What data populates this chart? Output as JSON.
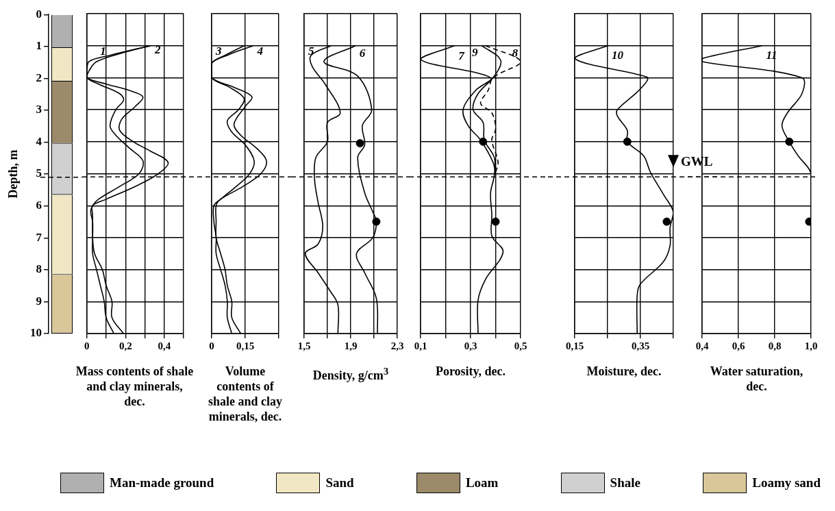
{
  "chart_data": [
    {
      "type": "bar",
      "stacked": true,
      "categories": [
        null
      ],
      "ylabel": "Depth, m",
      "ylim": [
        10,
        0
      ],
      "yticks": [
        0,
        1,
        2,
        3,
        4,
        5,
        6,
        7,
        8,
        9,
        10
      ],
      "tick_labels": "y",
      "legend": "bottom",
      "ref_lines": [
        {
          "axis": "y",
          "value": 5.1,
          "line_style": "dashed"
        }
      ],
      "series": [
        {
          "name": "Man-made ground",
          "color": "#b0b0b0",
          "values": [
            1.05
          ]
        },
        {
          "name": "Sand",
          "color": "#f1e7c4",
          "values": [
            1.05
          ]
        },
        {
          "name": "Loam",
          "color": "#9c8a6a",
          "values": [
            1.95
          ]
        },
        {
          "name": "Shale",
          "color": "#d0d0d0",
          "values": [
            1.6
          ]
        },
        {
          "color": "#f1e7c4",
          "values": [
            2.5
          ]
        },
        {
          "name": "Loamy sand",
          "color": "#d9c79a",
          "values": [
            1.85
          ]
        }
      ]
    },
    {
      "type": "line",
      "xlabel": "Mass contents of shale and clay minerals, dec.",
      "xlim": [
        0,
        0.5
      ],
      "xticks": [
        0,
        {
          "value": 0.1,
          "label": null
        },
        {
          "value": 0.2,
          "label": "0,2"
        },
        {
          "value": 0.3,
          "label": null
        },
        {
          "value": 0.4,
          "label": "0,4"
        },
        {
          "value": 0.5,
          "label": null
        }
      ],
      "ylim": [
        10,
        0
      ],
      "yticks": [
        0,
        1,
        2,
        3,
        4,
        5,
        6,
        7,
        8,
        9,
        10
      ],
      "tick_labels": "x",
      "grid": true,
      "marker": "none",
      "ref_lines": [
        {
          "axis": "y",
          "value": 5.1,
          "line_style": "dashed"
        }
      ],
      "series": [
        {
          "name": "1",
          "color": "#000000",
          "x": [
            0.33,
            0.12,
            0.01,
            0,
            0,
            0.06,
            0.17,
            0.19,
            0.15,
            0.12,
            0.15,
            0.22,
            0.29,
            0.27,
            0.17,
            0.06,
            0.03,
            0.02,
            0.03,
            0.03,
            0.03,
            0.05,
            0.07,
            0.09,
            0.1,
            0.14
          ],
          "values": [
            1,
            1.3,
            1.5,
            1.8,
            2,
            2.2,
            2.5,
            2.7,
            3,
            3.5,
            3.8,
            4.2,
            4.6,
            5,
            5.4,
            5.8,
            6,
            6.2,
            6.5,
            7,
            7.5,
            8,
            8.5,
            9,
            9.5,
            10
          ]
        },
        {
          "name": "2",
          "color": "#000000",
          "x": [
            0.33,
            0.2,
            0.05,
            0.01,
            0,
            0.1,
            0.22,
            0.29,
            0.25,
            0.18,
            0.17,
            0.24,
            0.33,
            0.42,
            0.37,
            0.25,
            0.1,
            0.03,
            0.03,
            0.03,
            0.04,
            0.08,
            0.1,
            0.13,
            0.13,
            0.19
          ],
          "values": [
            1,
            1.2,
            1.5,
            1.8,
            2,
            2.2,
            2.4,
            2.6,
            2.9,
            3.3,
            3.65,
            4,
            4.3,
            4.65,
            5,
            5.4,
            5.8,
            6,
            6.3,
            7,
            7.5,
            8,
            8.5,
            9,
            9.5,
            10
          ]
        }
      ]
    },
    {
      "type": "line",
      "xlabel": "Volume contents of shale and clay minerals, dec.",
      "xlim": [
        0,
        0.3
      ],
      "xticks": [
        0,
        {
          "value": 0.15,
          "label": "0,15"
        },
        {
          "value": 0.3,
          "label": null
        }
      ],
      "ylim": [
        10,
        0
      ],
      "yticks": [
        0,
        1,
        2,
        3,
        4,
        5,
        6,
        7,
        8,
        9,
        10
      ],
      "tick_labels": "x",
      "grid": true,
      "marker": "none",
      "ref_lines": [
        {
          "axis": "y",
          "value": 5.1,
          "line_style": "dashed"
        }
      ],
      "series": [
        {
          "name": "3",
          "color": "#000000",
          "x": [
            0.145,
            0.06,
            0,
            0,
            0.08,
            0.145,
            0.12,
            0.07,
            0.09,
            0.15,
            0.19,
            0.17,
            0.11,
            0.04,
            0.01,
            0.01,
            0.02,
            0.02,
            0.04,
            0.06,
            0.07,
            0.07,
            0.09
          ],
          "values": [
            1,
            1.3,
            1.55,
            2,
            2.3,
            2.65,
            3,
            3.35,
            3.7,
            4.1,
            4.6,
            5,
            5.4,
            5.8,
            6,
            6.5,
            7,
            7.5,
            8,
            8.5,
            9,
            9.5,
            10
          ]
        },
        {
          "name": "4",
          "color": "#000000",
          "x": [
            0.185,
            0.07,
            0,
            0,
            0.1,
            0.18,
            0.15,
            0.1,
            0.13,
            0.2,
            0.245,
            0.22,
            0.14,
            0.04,
            0.02,
            0.02,
            0.02,
            0.04,
            0.06,
            0.07,
            0.09,
            0.09,
            0.13
          ],
          "values": [
            1,
            1.3,
            1.55,
            2,
            2.3,
            2.6,
            2.9,
            3.45,
            3.8,
            4.2,
            4.6,
            5,
            5.4,
            5.8,
            6,
            6.5,
            7,
            7.5,
            8,
            8.5,
            9,
            9.5,
            10
          ]
        }
      ]
    },
    {
      "type": "line",
      "xlabel": "Density, g/cm$^{3}$",
      "xlim": [
        1.5,
        2.3
      ],
      "xticks": [
        {
          "value": 1.5,
          "label": "1,5"
        },
        {
          "value": 1.7,
          "label": null
        },
        {
          "value": 1.9,
          "label": "1,9"
        },
        {
          "value": 2.1,
          "label": null
        },
        {
          "value": 2.3,
          "label": "2,3"
        }
      ],
      "ylim": [
        10,
        0
      ],
      "yticks": [
        0,
        1,
        2,
        3,
        4,
        5,
        6,
        7,
        8,
        9,
        10
      ],
      "tick_labels": "x",
      "grid": true,
      "marker": "none",
      "ref_lines": [
        {
          "axis": "y",
          "value": 5.1,
          "line_style": "dashed"
        }
      ],
      "series": [
        {
          "name": "5",
          "color": "#000000",
          "x": [
            1.73,
            1.56,
            1.57,
            1.68,
            1.81,
            1.7,
            1.7,
            1.6,
            1.59,
            1.62,
            1.66,
            1.62,
            1.51,
            1.62,
            1.72,
            1.79,
            1.79
          ],
          "values": [
            1,
            1.3,
            1.65,
            2.2,
            3.1,
            3.4,
            4,
            4.5,
            5.2,
            5.9,
            6.65,
            7.2,
            7.5,
            8.1,
            8.65,
            9.1,
            10
          ]
        },
        {
          "name": "6",
          "color": "#000000",
          "x": [
            1.94,
            1.67,
            1.96,
            2.08,
            2,
            2.02,
            1.96,
            2.02,
            2.09,
            2.12,
            2.09,
            1.95,
            2.02,
            2.12,
            2.13
          ],
          "values": [
            1,
            1.5,
            1.95,
            3,
            3.5,
            4.1,
            4.5,
            5.6,
            6.2,
            6.5,
            7,
            7.5,
            8.1,
            8.9,
            10
          ]
        },
        {
          "type": "scatter",
          "marker": "circle",
          "color": "#000000",
          "x": [
            1.98,
            2.12
          ],
          "values": [
            4.05,
            6.5
          ]
        }
      ]
    },
    {
      "type": "line",
      "xlabel": "Porosity, dec.",
      "xlim": [
        0.1,
        0.5
      ],
      "xticks": [
        {
          "value": 0.1,
          "label": "0,1"
        },
        {
          "value": 0.2,
          "label": null
        },
        {
          "value": 0.3,
          "label": "0,3"
        },
        {
          "value": 0.4,
          "label": null
        },
        {
          "value": 0.5,
          "label": "0,5"
        }
      ],
      "ylim": [
        10,
        0
      ],
      "yticks": [
        0,
        1,
        2,
        3,
        4,
        5,
        6,
        7,
        8,
        9,
        10
      ],
      "tick_labels": "x",
      "grid": true,
      "marker": "none",
      "ref_lines": [
        {
          "axis": "y",
          "value": 5.1,
          "line_style": "dashed"
        }
      ],
      "series": [
        {
          "name": "7",
          "color": "#000000",
          "x": [
            0.235,
            0.1,
            0.38,
            0.32,
            0.27,
            0.29,
            0.34,
            0.39,
            0.4
          ],
          "values": [
            1,
            1.43,
            2,
            2.4,
            3,
            3.5,
            3.95,
            4.65,
            5.05
          ]
        },
        {
          "name": "8",
          "color": "#000000",
          "line_style": "dashed",
          "x": [
            0.36,
            0.5,
            0.39,
            0.37,
            0.34,
            0.385,
            0.4,
            0.385,
            0.41,
            0.395
          ],
          "values": [
            1,
            1.5,
            2,
            2.4,
            2.8,
            3.1,
            3.6,
            3.95,
            4.65,
            5.05
          ]
        },
        {
          "name": "9",
          "color": "#000000",
          "x": [
            0.345,
            0.42,
            0.395,
            0.33,
            0.31,
            0.35,
            0.355,
            0.395,
            0.395,
            0.38,
            0.385,
            0.385,
            0.43,
            0.36,
            0.33,
            0.33
          ],
          "values": [
            1,
            1.45,
            1.95,
            2.5,
            3,
            3.4,
            3.95,
            4.5,
            5.05,
            5.6,
            6.3,
            6.95,
            7.45,
            8.3,
            8.95,
            10
          ]
        },
        {
          "type": "scatter",
          "marker": "circle",
          "color": "#000000",
          "x": [
            0.35,
            0.4
          ],
          "values": [
            4,
            6.5
          ]
        }
      ]
    },
    {
      "type": "line",
      "xlabel": "Moisture, dec.",
      "xlim": [
        0.15,
        0.45
      ],
      "xticks": [
        {
          "value": 0.15,
          "label": "0,15"
        },
        {
          "value": 0.25,
          "label": null
        },
        {
          "value": 0.35,
          "label": "0,35"
        },
        {
          "value": 0.45,
          "label": null
        }
      ],
      "ylim": [
        10,
        0
      ],
      "yticks": [
        0,
        1,
        2,
        3,
        4,
        5,
        6,
        7,
        8,
        9,
        10
      ],
      "tick_labels": "x",
      "grid": true,
      "marker": "none",
      "ref_lines": [
        {
          "axis": "y",
          "value": 5.1,
          "line_style": "dashed",
          "label": "GWL"
        }
      ],
      "series": [
        {
          "name": "10",
          "color": "#000000",
          "x": [
            0.25,
            0.15,
            0.37,
            0.37,
            0.34,
            0.28,
            0.28,
            0.31,
            0.31,
            0.36,
            0.38,
            0.42,
            0.45,
            0.44,
            0.44,
            0.42,
            0.35,
            0.34,
            0.34
          ],
          "values": [
            1,
            1.4,
            1.98,
            2.1,
            2.45,
            3,
            3.2,
            3.65,
            4,
            4.45,
            4.95,
            5.65,
            6.2,
            6.7,
            7.25,
            7.75,
            8.45,
            8.8,
            10
          ]
        },
        {
          "type": "scatter",
          "marker": "circle",
          "color": "#000000",
          "x": [
            0.31,
            0.43
          ],
          "values": [
            4,
            6.5
          ]
        }
      ]
    },
    {
      "type": "line",
      "xlabel": "Water saturation, dec.",
      "xlim": [
        0.4,
        1.0
      ],
      "xticks": [
        {
          "value": 0.4,
          "label": "0,4"
        },
        {
          "value": 0.6,
          "label": "0,6"
        },
        {
          "value": 0.8,
          "label": "0,8"
        },
        {
          "value": 1.0,
          "label": "1,0"
        }
      ],
      "ylim": [
        10,
        0
      ],
      "yticks": [
        0,
        1,
        2,
        3,
        4,
        5,
        6,
        7,
        8,
        9,
        10
      ],
      "tick_labels": "x",
      "grid": true,
      "marker": "none",
      "ref_lines": [
        {
          "axis": "y",
          "value": 5.1,
          "line_style": "dashed"
        }
      ],
      "series": [
        {
          "name": "11",
          "color": "#000000",
          "x": [
            0.73,
            0.4,
            0.4,
            0.95,
            0.95,
            0.87,
            0.84,
            0.88,
            0.93,
            1.0,
            1.0
          ],
          "values": [
            1,
            1.4,
            1.5,
            2,
            2.5,
            3.1,
            3.5,
            4,
            4.45,
            5,
            6.5
          ]
        },
        {
          "type": "scatter",
          "marker": "circle",
          "color": "#000000",
          "x": [
            0.88,
            0.99
          ],
          "values": [
            4,
            6.5
          ]
        }
      ]
    }
  ]
}
